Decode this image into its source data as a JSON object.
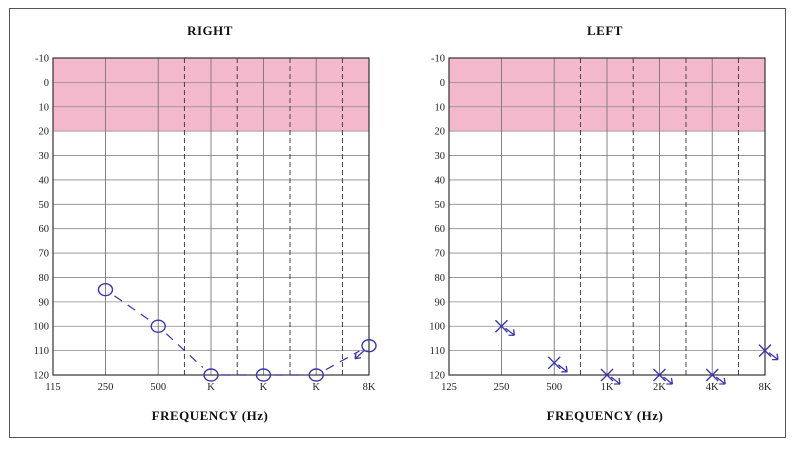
{
  "chart_data": [
    {
      "type": "scatter",
      "title": "RIGHT",
      "xlabel": "FREQUENCY (Hz)",
      "ylabel": "",
      "ylim": [
        -10,
        120
      ],
      "y_ticks": [
        "-10",
        "0",
        "10",
        "20",
        "30",
        "40",
        "50",
        "60",
        "70",
        "80",
        "90",
        "100",
        "110",
        "120"
      ],
      "x_ticks": [
        "115",
        "250",
        "500",
        "K",
        "K",
        "K",
        "8K"
      ],
      "shaded_band": {
        "from": -10,
        "to": 20,
        "color": "#f4b8cc"
      },
      "marker": "O",
      "marker_color": "#3a36a8",
      "series": [
        {
          "x": [
            250,
            500,
            1000,
            2000,
            4000,
            8000
          ],
          "values": [
            85,
            100,
            120,
            120,
            120,
            108
          ]
        }
      ]
    },
    {
      "type": "scatter",
      "title": "LEFT",
      "xlabel": "FREQUENCY (Hz)",
      "ylabel": "",
      "ylim": [
        -10,
        120
      ],
      "y_ticks": [
        "-10",
        "0",
        "10",
        "20",
        "30",
        "40",
        "50",
        "60",
        "70",
        "80",
        "90",
        "100",
        "110",
        "120"
      ],
      "x_ticks": [
        "125",
        "250",
        "500",
        "1K",
        "2K",
        "4K",
        "8K"
      ],
      "shaded_band": {
        "from": -10,
        "to": 20,
        "color": "#f4b8cc"
      },
      "marker": "X",
      "marker_color": "#3a36a8",
      "series": [
        {
          "x": [
            250,
            500,
            1000,
            2000,
            4000,
            8000
          ],
          "values": [
            100,
            115,
            120,
            120,
            120,
            110
          ]
        }
      ]
    }
  ]
}
